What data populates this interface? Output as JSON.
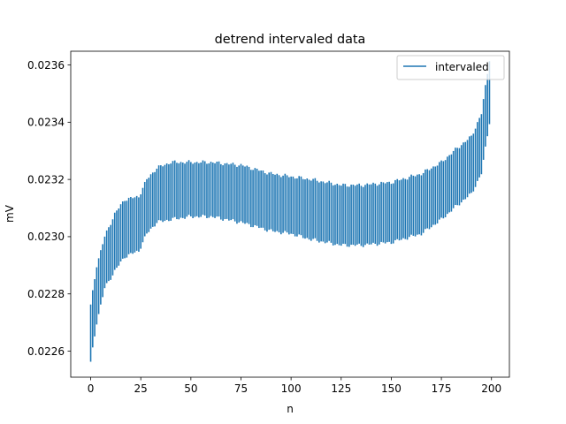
{
  "chart_data": {
    "type": "bar",
    "title": "detrend intervaled data",
    "xlabel": "n",
    "ylabel": "mV",
    "xlim": [
      -9.95,
      208.95
    ],
    "ylim": [
      0.022509,
      0.023648
    ],
    "xticks": [
      0,
      25,
      50,
      75,
      100,
      125,
      150,
      175,
      200
    ],
    "xtick_labels": [
      "0",
      "25",
      "50",
      "75",
      "100",
      "125",
      "150",
      "175",
      "200"
    ],
    "yticks": [
      0.0226,
      0.0228,
      0.023,
      0.0232,
      0.0234,
      0.0236
    ],
    "ytick_labels": [
      "0.0226",
      "0.0228",
      "0.0230",
      "0.0232",
      "0.0234",
      "0.0236"
    ],
    "grid": false,
    "legend_position": "top-right",
    "series": [
      {
        "name": "intervaled",
        "color": "#1f77b4",
        "style": "vertical interval lines (one per n, from low to high)",
        "x_range": [
          0,
          199
        ],
        "knots": [
          {
            "x": 0,
            "low": 0.02256,
            "high": 0.02276
          },
          {
            "x": 3,
            "low": 0.0227,
            "high": 0.0229
          },
          {
            "x": 7,
            "low": 0.02282,
            "high": 0.023
          },
          {
            "x": 12,
            "low": 0.02288,
            "high": 0.02308
          },
          {
            "x": 17,
            "low": 0.02293,
            "high": 0.02313
          },
          {
            "x": 24,
            "low": 0.02295,
            "high": 0.02314
          },
          {
            "x": 28,
            "low": 0.02301,
            "high": 0.0232
          },
          {
            "x": 33,
            "low": 0.02305,
            "high": 0.02324
          },
          {
            "x": 40,
            "low": 0.02306,
            "high": 0.02326
          },
          {
            "x": 50,
            "low": 0.02307,
            "high": 0.02326
          },
          {
            "x": 60,
            "low": 0.02307,
            "high": 0.02326
          },
          {
            "x": 75,
            "low": 0.02305,
            "high": 0.02325
          },
          {
            "x": 90,
            "low": 0.02302,
            "high": 0.02322
          },
          {
            "x": 100,
            "low": 0.02301,
            "high": 0.02321
          },
          {
            "x": 110,
            "low": 0.02299,
            "high": 0.0232
          },
          {
            "x": 125,
            "low": 0.02297,
            "high": 0.02318
          },
          {
            "x": 135,
            "low": 0.02297,
            "high": 0.02318
          },
          {
            "x": 150,
            "low": 0.02298,
            "high": 0.02319
          },
          {
            "x": 165,
            "low": 0.02301,
            "high": 0.02322
          },
          {
            "x": 175,
            "low": 0.02306,
            "high": 0.02326
          },
          {
            "x": 183,
            "low": 0.02311,
            "high": 0.02331
          },
          {
            "x": 190,
            "low": 0.02315,
            "high": 0.02335
          },
          {
            "x": 195,
            "low": 0.02322,
            "high": 0.02343
          },
          {
            "x": 199,
            "low": 0.0234,
            "high": 0.02362
          }
        ]
      }
    ]
  }
}
